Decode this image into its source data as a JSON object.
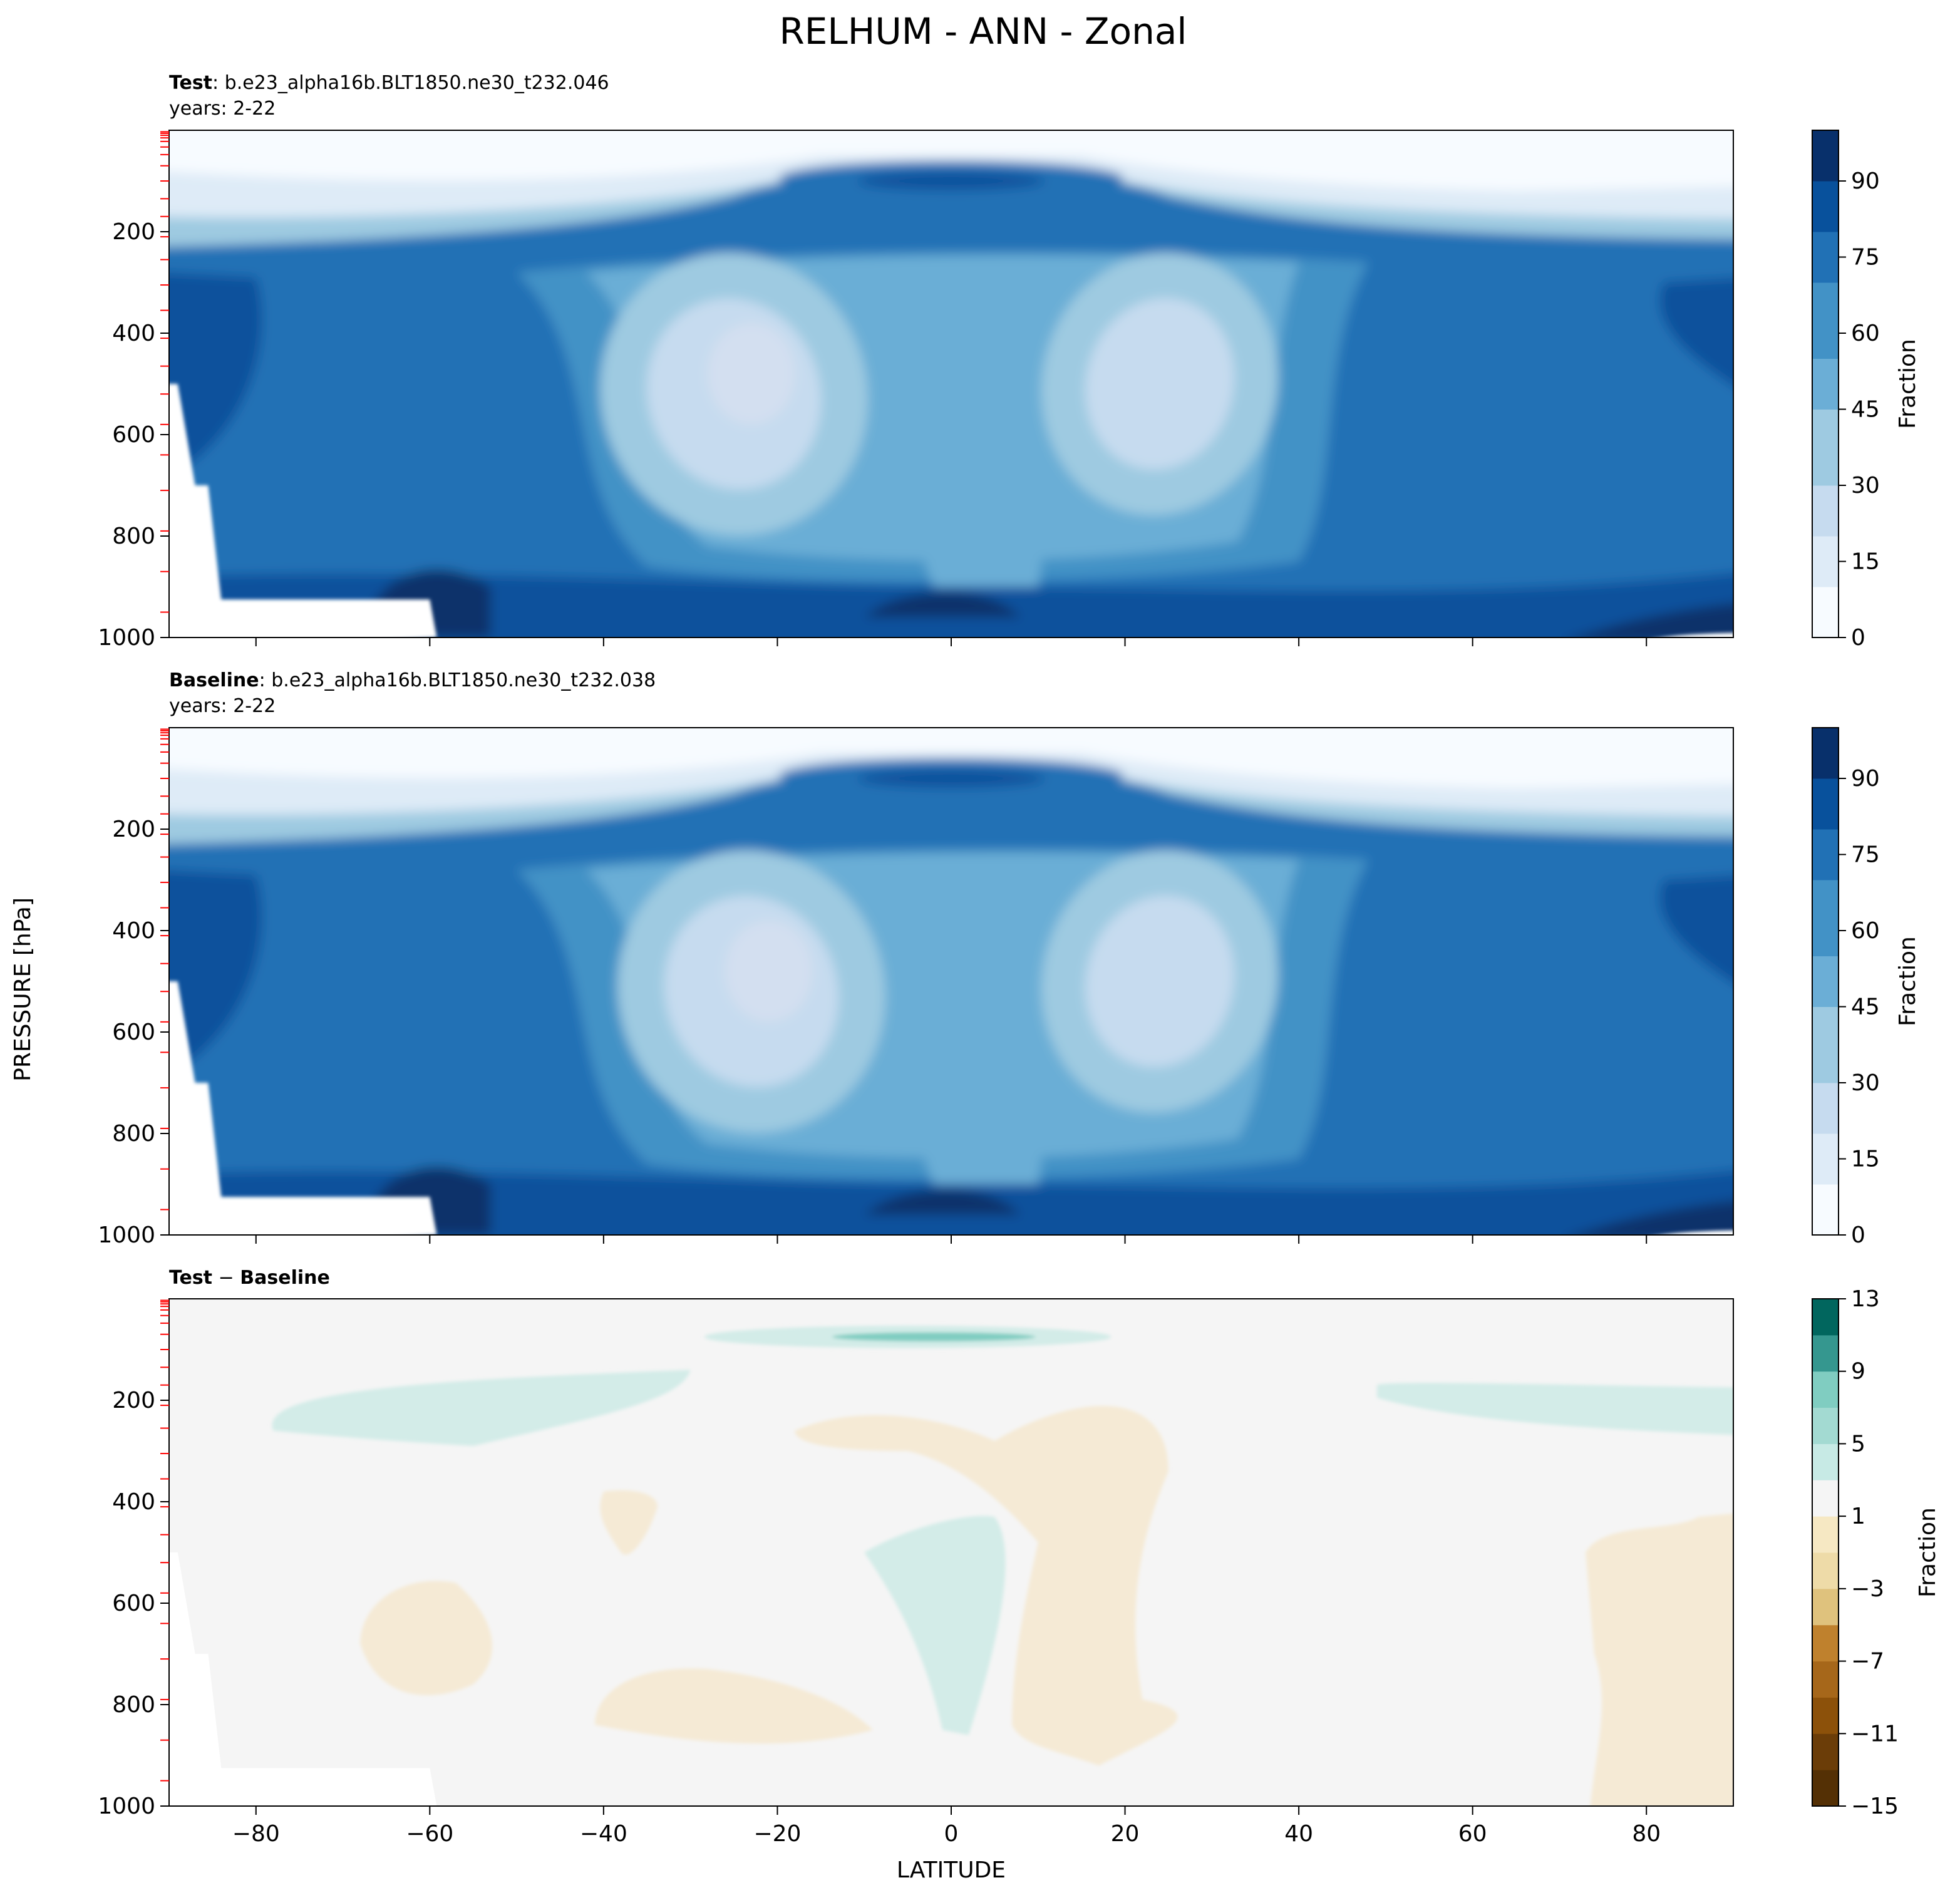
{
  "figure": {
    "title": "RELHUM - ANN - Zonal",
    "xlabel": "LATITUDE",
    "ylabel": "PRESSURE [hPa]"
  },
  "colors": {
    "sequential": [
      "#f7fbff",
      "#deebf7",
      "#c6dbef",
      "#9ecae1",
      "#6baed6",
      "#4292c6",
      "#2171b5",
      "#08519c",
      "#08306b"
    ],
    "diverging": [
      "#543005",
      "#8c510a",
      "#bf812d",
      "#dfc27d",
      "#f6e8c3",
      "#f5f5f5",
      "#c7eae5",
      "#80cdc1",
      "#35978f",
      "#01665e",
      "#003c30"
    ],
    "missing": "#ffffff"
  },
  "chart_data": [
    {
      "type": "heatmap",
      "name": "test",
      "label_bold": "Test",
      "label_rest": ": b.e23_alpha16b.BLT1850.ne30_t232.046",
      "years": "years: 2-22",
      "x": [
        -90,
        90
      ],
      "xlim": [
        -90,
        90
      ],
      "ylim": [
        1000,
        0
      ],
      "xticks": [
        -80,
        -60,
        -40,
        -20,
        0,
        20,
        40,
        60,
        80
      ],
      "yticks": [
        200,
        400,
        600,
        800,
        1000
      ],
      "colorbar": {
        "label": "Fraction",
        "range": [
          0,
          100
        ],
        "ticks": [
          0,
          15,
          30,
          45,
          60,
          75,
          90
        ]
      }
    },
    {
      "type": "heatmap",
      "name": "baseline",
      "label_bold": "Baseline",
      "label_rest": ": b.e23_alpha16b.BLT1850.ne30_t232.038",
      "years": "years: 2-22",
      "xlim": [
        -90,
        90
      ],
      "ylim": [
        1000,
        0
      ],
      "xticks": [
        -80,
        -60,
        -40,
        -20,
        0,
        20,
        40,
        60,
        80
      ],
      "yticks": [
        200,
        400,
        600,
        800,
        1000
      ],
      "colorbar": {
        "label": "Fraction",
        "range": [
          0,
          100
        ],
        "ticks": [
          0,
          15,
          30,
          45,
          60,
          75,
          90
        ]
      }
    },
    {
      "type": "heatmap",
      "name": "difference",
      "label_bold": "Test",
      "label_sep": " − ",
      "label_bold2": "Baseline",
      "xlim": [
        -90,
        90
      ],
      "ylim": [
        1000,
        0
      ],
      "xticks": [
        -80,
        -60,
        -40,
        -20,
        0,
        20,
        40,
        60,
        80
      ],
      "yticks": [
        200,
        400,
        600,
        800,
        1000
      ],
      "colorbar": {
        "label": "Fraction",
        "range": [
          -15,
          13
        ],
        "ticks": [
          -15,
          -11,
          -7,
          -3,
          1,
          5,
          9,
          13
        ]
      }
    }
  ]
}
